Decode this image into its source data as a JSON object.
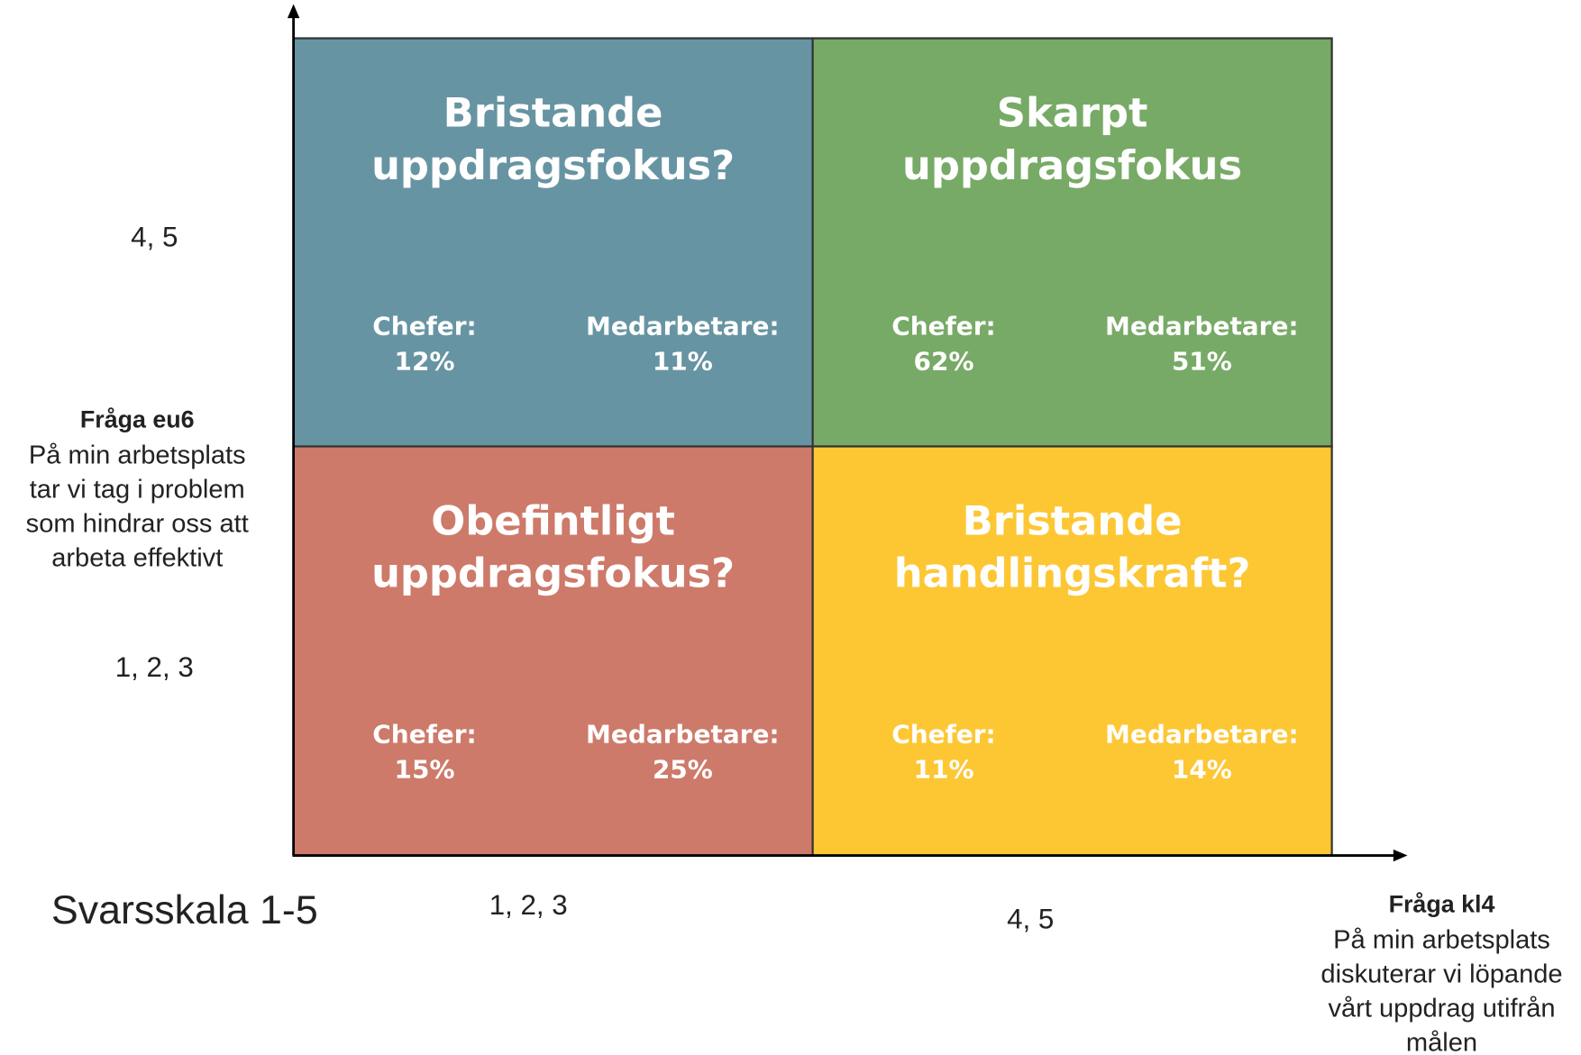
{
  "quadrants": [
    {
      "title": [
        "Bristande",
        "uppdragsfokus?"
      ],
      "color": "#6794a3",
      "groups": [
        {
          "label": "Chefer:",
          "value": "12%"
        },
        {
          "label": "Medarbetare:",
          "value": "11%"
        }
      ]
    },
    {
      "title": [
        "Skarpt",
        "uppdragsfokus"
      ],
      "color": "#77aa66",
      "groups": [
        {
          "label": "Chefer:",
          "value": "62%"
        },
        {
          "label": "Medarbetare:",
          "value": "51%"
        }
      ]
    },
    {
      "title": [
        "Obefintligt",
        "uppdragsfokus?"
      ],
      "color": "#cd7a6a",
      "groups": [
        {
          "label": "Chefer:",
          "value": "15%"
        },
        {
          "label": "Medarbetare:",
          "value": "25%"
        }
      ]
    },
    {
      "title": [
        "Bristande",
        "handlingskraft?"
      ],
      "color": "#fdc734",
      "groups": [
        {
          "label": "Chefer:",
          "value": "11%"
        },
        {
          "label": "Medarbetare:",
          "value": "14%"
        }
      ]
    }
  ],
  "y_axis": {
    "title": "Fråga  eu6",
    "description": [
      "På min arbetsplats",
      "tar vi tag i problem",
      "som hindrar oss att",
      "arbeta effektivt"
    ],
    "high": "4, 5",
    "low": "1, 2, 3"
  },
  "x_axis": {
    "title": "Fråga kl4",
    "description": [
      "På min arbetsplats",
      "diskuterar vi löpande",
      "vårt uppdrag utifrån",
      "målen"
    ],
    "low": "1, 2, 3",
    "high": "4, 5"
  },
  "scale_label": "Svarsskala 1-5"
}
